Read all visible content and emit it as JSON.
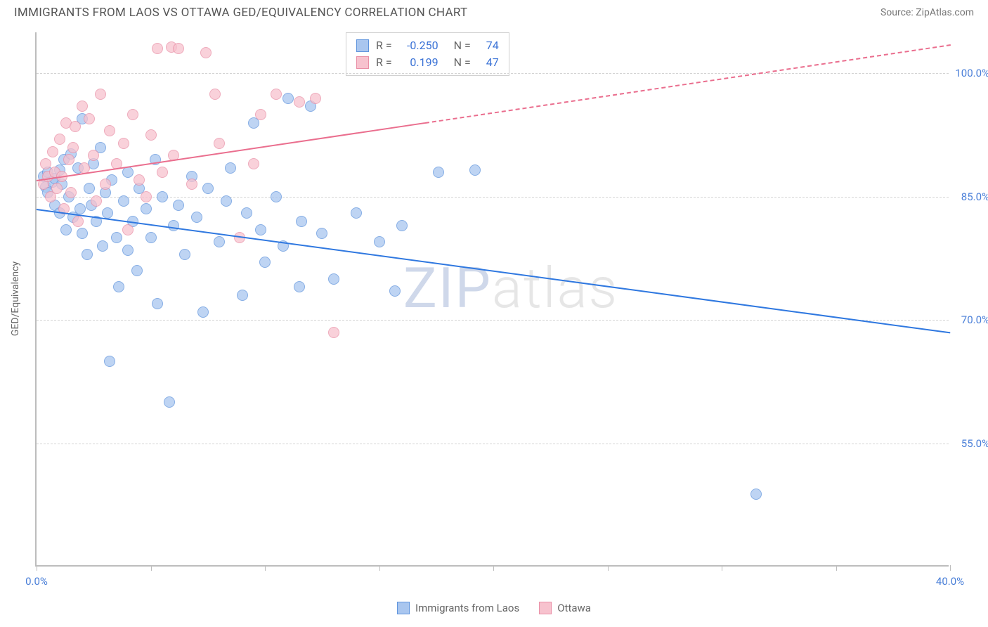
{
  "header": {
    "title": "IMMIGRANTS FROM LAOS VS OTTAWA GED/EQUIVALENCY CORRELATION CHART",
    "source_label": "Source: ZipAtlas.com"
  },
  "chart": {
    "type": "scatter",
    "ylabel": "GED/Equivalency",
    "xlim": [
      0,
      40
    ],
    "ylim": [
      40,
      105
    ],
    "y_gridlines": [
      55,
      70,
      85,
      100
    ],
    "y_tick_labels": [
      "55.0%",
      "70.0%",
      "85.0%",
      "100.0%"
    ],
    "x_ticks": [
      0,
      5,
      10,
      15,
      20,
      25,
      30,
      35,
      40
    ],
    "x_tick_labels": {
      "0": "0.0%",
      "40": "40.0%"
    },
    "grid_color": "#d4d4d4",
    "axis_color": "#bdbdbd",
    "label_color": "#4a7fd8",
    "background_color": "#ffffff",
    "series": [
      {
        "name": "Immigrants from Laos",
        "fill": "#a9c6ef",
        "stroke": "#5f94dd",
        "opacity": 0.75,
        "marker_size": 16,
        "R": "-0.250",
        "N": "74",
        "regression": {
          "x0": 0,
          "y0": 83.5,
          "x1": 40,
          "y1": 68.5,
          "solid_until_x": 40,
          "line_color": "#2f78e0"
        },
        "points": [
          [
            0.3,
            87.5
          ],
          [
            0.4,
            86.2
          ],
          [
            0.5,
            88.0
          ],
          [
            0.5,
            85.5
          ],
          [
            0.7,
            86.8
          ],
          [
            0.8,
            87.2
          ],
          [
            0.8,
            84.0
          ],
          [
            1.0,
            88.2
          ],
          [
            1.0,
            83.0
          ],
          [
            1.1,
            86.5
          ],
          [
            1.2,
            89.5
          ],
          [
            1.3,
            81.0
          ],
          [
            1.4,
            85.0
          ],
          [
            1.5,
            90.2
          ],
          [
            1.6,
            82.5
          ],
          [
            1.8,
            88.5
          ],
          [
            1.9,
            83.5
          ],
          [
            2.0,
            94.5
          ],
          [
            2.0,
            80.5
          ],
          [
            2.2,
            78.0
          ],
          [
            2.3,
            86.0
          ],
          [
            2.4,
            84.0
          ],
          [
            2.5,
            89.0
          ],
          [
            2.6,
            82.0
          ],
          [
            2.8,
            91.0
          ],
          [
            2.9,
            79.0
          ],
          [
            3.0,
            85.5
          ],
          [
            3.1,
            83.0
          ],
          [
            3.2,
            65.0
          ],
          [
            3.3,
            87.0
          ],
          [
            3.5,
            80.0
          ],
          [
            3.6,
            74.0
          ],
          [
            3.8,
            84.5
          ],
          [
            4.0,
            88.0
          ],
          [
            4.0,
            78.5
          ],
          [
            4.2,
            82.0
          ],
          [
            4.4,
            76.0
          ],
          [
            4.5,
            86.0
          ],
          [
            4.8,
            83.5
          ],
          [
            5.0,
            80.0
          ],
          [
            5.2,
            89.5
          ],
          [
            5.3,
            72.0
          ],
          [
            5.5,
            85.0
          ],
          [
            5.8,
            60.0
          ],
          [
            6.0,
            81.5
          ],
          [
            6.2,
            84.0
          ],
          [
            6.5,
            78.0
          ],
          [
            6.8,
            87.5
          ],
          [
            7.0,
            82.5
          ],
          [
            7.3,
            71.0
          ],
          [
            7.5,
            86.0
          ],
          [
            8.0,
            79.5
          ],
          [
            8.3,
            84.5
          ],
          [
            8.5,
            88.5
          ],
          [
            9.0,
            73.0
          ],
          [
            9.2,
            83.0
          ],
          [
            9.5,
            94.0
          ],
          [
            9.8,
            81.0
          ],
          [
            10.0,
            77.0
          ],
          [
            10.5,
            85.0
          ],
          [
            10.8,
            79.0
          ],
          [
            11.0,
            97.0
          ],
          [
            11.6,
            82.0
          ],
          [
            11.5,
            74.0
          ],
          [
            12.0,
            96.0
          ],
          [
            12.5,
            80.5
          ],
          [
            13.0,
            75.0
          ],
          [
            14.0,
            83.0
          ],
          [
            15.0,
            79.5
          ],
          [
            15.7,
            73.5
          ],
          [
            16.0,
            81.5
          ],
          [
            17.6,
            88.0
          ],
          [
            19.2,
            88.2
          ],
          [
            31.5,
            48.8
          ]
        ]
      },
      {
        "name": "Ottawa",
        "fill": "#f7c2ce",
        "stroke": "#e98fa6",
        "opacity": 0.75,
        "marker_size": 16,
        "R": "0.199",
        "N": "47",
        "regression": {
          "x0": 0,
          "y0": 87.0,
          "x1": 40,
          "y1": 103.5,
          "solid_until_x": 17,
          "line_color": "#ea6e8e"
        },
        "points": [
          [
            0.3,
            86.5
          ],
          [
            0.4,
            89.0
          ],
          [
            0.5,
            87.5
          ],
          [
            0.6,
            85.0
          ],
          [
            0.7,
            90.5
          ],
          [
            0.8,
            88.0
          ],
          [
            0.9,
            86.0
          ],
          [
            1.0,
            92.0
          ],
          [
            1.1,
            87.5
          ],
          [
            1.2,
            83.5
          ],
          [
            1.3,
            94.0
          ],
          [
            1.4,
            89.5
          ],
          [
            1.5,
            85.5
          ],
          [
            1.6,
            91.0
          ],
          [
            1.7,
            93.5
          ],
          [
            1.8,
            82.0
          ],
          [
            2.0,
            96.0
          ],
          [
            2.1,
            88.5
          ],
          [
            2.3,
            94.5
          ],
          [
            2.5,
            90.0
          ],
          [
            2.6,
            84.5
          ],
          [
            2.8,
            97.5
          ],
          [
            3.0,
            86.5
          ],
          [
            3.2,
            93.0
          ],
          [
            3.5,
            89.0
          ],
          [
            3.8,
            91.5
          ],
          [
            4.0,
            81.0
          ],
          [
            4.2,
            95.0
          ],
          [
            4.5,
            87.0
          ],
          [
            4.8,
            85.0
          ],
          [
            5.0,
            92.5
          ],
          [
            5.3,
            103.0
          ],
          [
            5.5,
            88.0
          ],
          [
            5.9,
            103.2
          ],
          [
            6.0,
            90.0
          ],
          [
            6.2,
            103.0
          ],
          [
            6.8,
            86.5
          ],
          [
            7.4,
            102.5
          ],
          [
            7.8,
            97.5
          ],
          [
            8.0,
            91.5
          ],
          [
            8.9,
            80.0
          ],
          [
            9.5,
            89.0
          ],
          [
            9.8,
            95.0
          ],
          [
            10.5,
            97.5
          ],
          [
            11.5,
            96.5
          ],
          [
            13.0,
            68.5
          ],
          [
            12.2,
            97.0
          ]
        ]
      }
    ],
    "stats_legend": {
      "rows": [
        {
          "swatch_fill": "#a9c6ef",
          "swatch_stroke": "#5f94dd",
          "r_label": "R =",
          "r_val": "-0.250",
          "n_label": "N =",
          "n_val": "74"
        },
        {
          "swatch_fill": "#f7c2ce",
          "swatch_stroke": "#e98fa6",
          "r_label": "R =",
          "r_val": "0.199",
          "n_label": "N =",
          "n_val": "47"
        }
      ]
    },
    "bottom_legend": [
      {
        "swatch_fill": "#a9c6ef",
        "swatch_stroke": "#5f94dd",
        "label": "Immigrants from Laos"
      },
      {
        "swatch_fill": "#f7c2ce",
        "swatch_stroke": "#e98fa6",
        "label": "Ottawa"
      }
    ],
    "watermark": {
      "part1": "ZIP",
      "part2": "atlas"
    }
  }
}
